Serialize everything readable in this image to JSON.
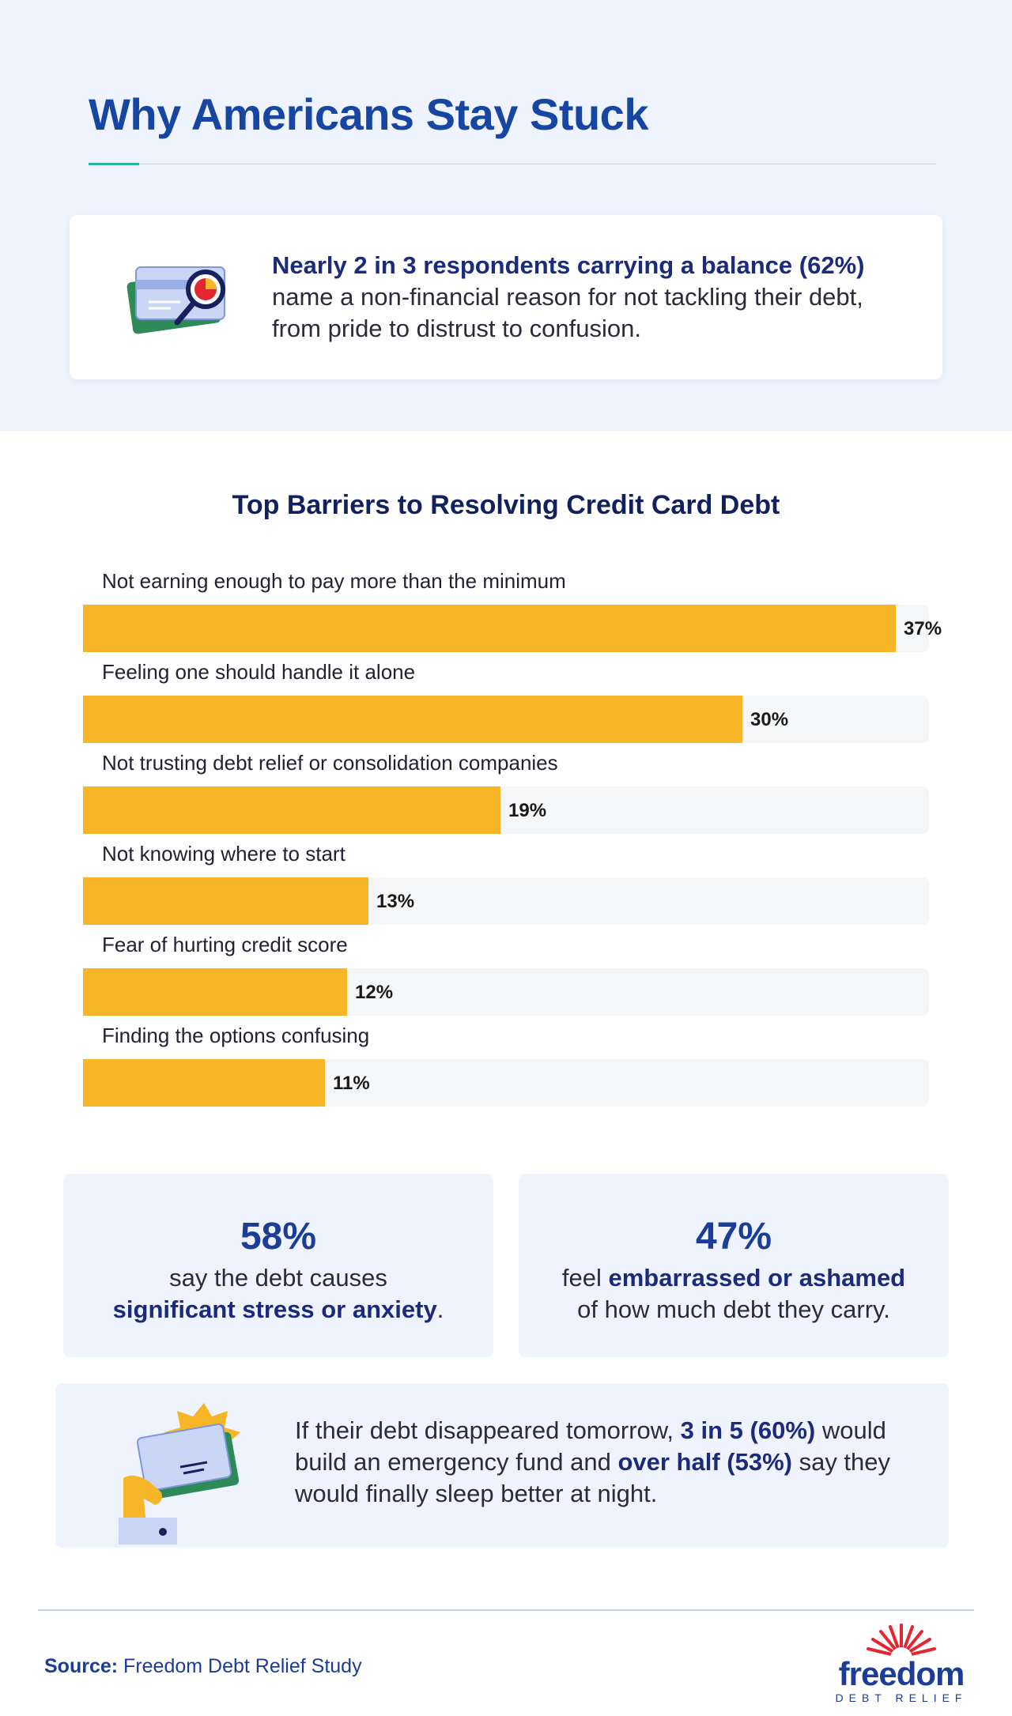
{
  "header": {
    "title": "Why Americans Stay Stuck"
  },
  "intro": {
    "icon": "credit-card-magnifier-icon",
    "highlight": "Nearly 2 in 3 respondents carrying a balance (62%)",
    "text": "name a non-financial reason for not tackling their debt, from pride to distrust to confusion."
  },
  "chart_data": {
    "type": "bar",
    "orientation": "horizontal",
    "title": "Top Barriers to Resolving Credit Card Debt",
    "xlabel": "",
    "ylabel": "",
    "xlim": [
      0,
      40
    ],
    "grid": false,
    "bar_color": "#f6b627",
    "track_color": "#f5f6f8",
    "categories": [
      "Not earning enough to pay more than the minimum",
      "Feeling one should handle it alone",
      "Not trusting debt relief or consolidation companies",
      "Not knowing where to start",
      "Fear of hurting credit score",
      "Finding the options confusing"
    ],
    "values": [
      37,
      30,
      19,
      13,
      12,
      11
    ],
    "value_labels": [
      "37%",
      "30%",
      "19%",
      "13%",
      "12%",
      "11%"
    ]
  },
  "stats": [
    {
      "big": "58%",
      "line1": "say the debt causes",
      "highlight": "significant stress or anxiety",
      "end": "."
    },
    {
      "big": "47%",
      "pre": "feel ",
      "highlight": "embarrassed or ashamed",
      "line2": "of how much debt they carry."
    }
  ],
  "bottom": {
    "icon": "hand-holding-card-icon",
    "t1": "If their debt disappeared tomorrow, ",
    "h1": "3 in 5 (60%)",
    "t2": " would build an emergency fund and ",
    "h2": "over half (53%)",
    "t3": " say they would finally sleep better at night."
  },
  "footer": {
    "source_label": "Source:",
    "source_text": "Freedom Debt Relief Study",
    "logo_word": "freedom",
    "logo_sub": "DEBT RELIEF"
  },
  "colors": {
    "title": "#1746a2",
    "accent_blue": "#1c3d97",
    "highlight_text": "#1c2a7c",
    "bar": "#f6b627",
    "background_band": "#eef3fd",
    "logo_sun": "#e3262f"
  }
}
